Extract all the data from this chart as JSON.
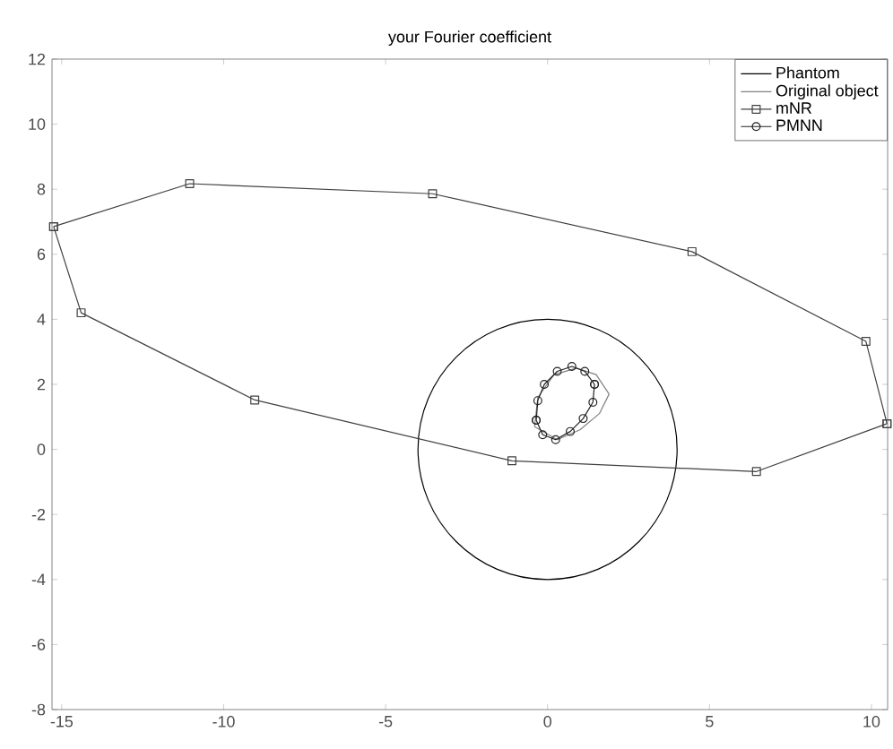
{
  "chart_data": {
    "type": "line",
    "title": "your Fourier coefficient",
    "annotations": [
      "Phantom"
    ],
    "xlim": [
      -15.3,
      10.5
    ],
    "ylim": [
      -8,
      12
    ],
    "xticks": [
      -15,
      -10,
      -5,
      0,
      5,
      10
    ],
    "yticks": [
      -8,
      -6,
      -4,
      -2,
      0,
      2,
      4,
      6,
      8,
      10,
      12
    ],
    "legend": "top right",
    "grid": false,
    "series": [
      {
        "name": "Original object",
        "color": "#808080",
        "marker": "none",
        "x": [
          -0.4,
          -0.3,
          0.2,
          0.9,
          1.5,
          1.9
        ],
        "values": [
          0.7,
          1.6,
          2.3,
          2.5,
          2.3,
          1.7
        ]
      },
      {
        "color": "#808080",
        "marker": "none",
        "x": [
          -0.4,
          0.3,
          1.0,
          1.6,
          1.9
        ],
        "values": [
          0.7,
          0.3,
          0.6,
          1.1,
          1.7
        ]
      },
      {
        "name": "mNR",
        "color": "#404040",
        "marker": "square",
        "x": [
          -15.25,
          -11.05,
          -3.55,
          4.46,
          9.83,
          10.48
        ],
        "values": [
          6.85,
          8.17,
          7.86,
          6.08,
          3.32,
          0.79
        ]
      },
      {
        "color": "#404040",
        "marker": "square",
        "x": [
          -15.25,
          -14.4,
          -9.04,
          -1.1,
          6.45,
          10.48
        ],
        "values": [
          6.85,
          4.2,
          1.52,
          -0.35,
          -0.68,
          0.79
        ]
      },
      {
        "name": "PMNN",
        "color": "#202020",
        "marker": "circle",
        "x": [
          -0.35,
          -0.3,
          -0.1,
          0.3,
          0.75,
          1.15,
          1.45
        ],
        "values": [
          0.9,
          1.5,
          2.0,
          2.4,
          2.55,
          2.4,
          2.0
        ]
      },
      {
        "color": "#202020",
        "marker": "circle",
        "x": [
          -0.35,
          -0.15,
          0.25,
          0.7,
          1.1,
          1.4,
          1.45
        ],
        "values": [
          0.9,
          0.45,
          0.3,
          0.55,
          0.95,
          1.45,
          2.0
        ]
      }
    ]
  }
}
